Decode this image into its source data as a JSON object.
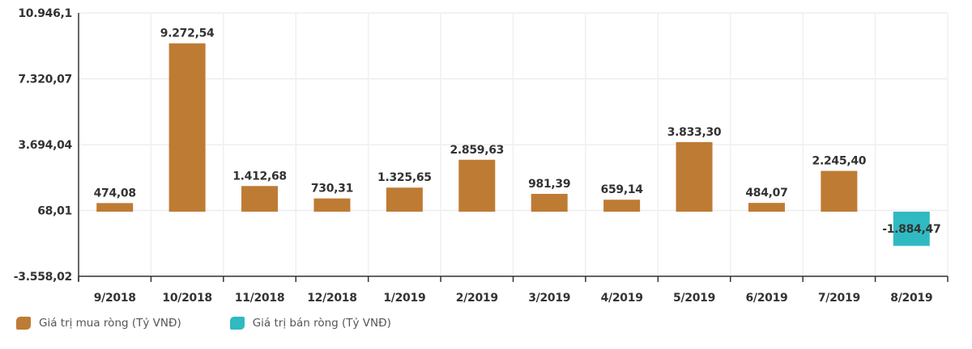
{
  "chart_data": {
    "type": "bar",
    "title": "",
    "xlabel": "",
    "ylabel": "",
    "categories": [
      "9/2018",
      "10/2018",
      "11/2018",
      "12/2018",
      "1/2019",
      "2/2019",
      "3/2019",
      "4/2019",
      "5/2019",
      "6/2019",
      "7/2019",
      "8/2019"
    ],
    "series": [
      {
        "name": "Giá trị mua ròng (Tỷ VNĐ)",
        "color": "#BE7B34",
        "values": [
          474.08,
          9272.54,
          1412.68,
          730.31,
          1325.65,
          2859.63,
          981.39,
          659.14,
          3833.3,
          484.07,
          2245.4,
          null
        ]
      },
      {
        "name": "Giá trị bán ròng (Tỷ VNĐ)",
        "color": "#2FBAC2",
        "values": [
          null,
          null,
          null,
          null,
          null,
          null,
          null,
          null,
          null,
          null,
          null,
          -1884.47
        ]
      }
    ],
    "data_labels": [
      "474,08",
      "9.272,54",
      "1.412,68",
      "730,31",
      "1.325,65",
      "2.859,63",
      "981,39",
      "659,14",
      "3.833,30",
      "484,07",
      "2.245,40",
      "-1.884,47"
    ],
    "y_ticks": [
      10946.1,
      7320.07,
      3694.04,
      68.01,
      -3558.02
    ],
    "y_tick_labels": [
      "10.946,1",
      "7.320,07",
      "3.694,04",
      "68,01",
      "-3.558,02"
    ],
    "ylim": [
      -3558.02,
      10946.1
    ],
    "grid": true,
    "legend_position": "bottom-left"
  },
  "legend": {
    "items": [
      {
        "label": "Giá trị mua ròng (Tỷ VNĐ)",
        "color": "#BE7B34"
      },
      {
        "label": "Giá trị bán ròng (Tỷ VNĐ)",
        "color": "#2FBAC2"
      }
    ]
  }
}
